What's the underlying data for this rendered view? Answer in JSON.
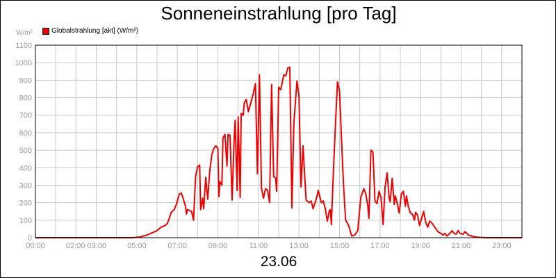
{
  "chart_data": {
    "type": "line",
    "title": "Sonneneinstrahlung [pro Tag]",
    "unit_label": "W/m²",
    "xlabel": "23.06",
    "ylim": [
      0,
      1100
    ],
    "y_ticks": [
      0,
      100,
      200,
      300,
      400,
      500,
      600,
      700,
      800,
      900,
      1000,
      1100
    ],
    "x_range_hours": [
      0,
      24
    ],
    "x_ticks": [
      {
        "h": 0,
        "label": "00:00"
      },
      {
        "h": 2.5,
        "label": "02:00 03:00"
      },
      {
        "h": 5,
        "label": "05:00"
      },
      {
        "h": 7,
        "label": "07:00"
      },
      {
        "h": 9,
        "label": "09:00"
      },
      {
        "h": 11,
        "label": "11:00"
      },
      {
        "h": 13,
        "label": "13:00"
      },
      {
        "h": 15,
        "label": "15:00"
      },
      {
        "h": 17,
        "label": "17:00"
      },
      {
        "h": 19,
        "label": "19:00"
      },
      {
        "h": 21,
        "label": "21:00"
      },
      {
        "h": 23,
        "label": "23:00"
      }
    ],
    "grid": true,
    "legend_position": "top-left",
    "series": [
      {
        "name": "Globalstrahlung [akt] (W/m²)",
        "color": "#ee0000",
        "points": [
          [
            0,
            0
          ],
          [
            4.8,
            0
          ],
          [
            5.2,
            5
          ],
          [
            5.5,
            15
          ],
          [
            5.8,
            30
          ],
          [
            6.0,
            40
          ],
          [
            6.2,
            60
          ],
          [
            6.4,
            70
          ],
          [
            6.5,
            80
          ],
          [
            6.6,
            110
          ],
          [
            6.7,
            145
          ],
          [
            6.85,
            160
          ],
          [
            6.95,
            190
          ],
          [
            7.1,
            250
          ],
          [
            7.2,
            255
          ],
          [
            7.3,
            220
          ],
          [
            7.4,
            180
          ],
          [
            7.45,
            135
          ],
          [
            7.5,
            160
          ],
          [
            7.7,
            150
          ],
          [
            7.8,
            100
          ],
          [
            7.9,
            350
          ],
          [
            8.0,
            405
          ],
          [
            8.1,
            415
          ],
          [
            8.15,
            160
          ],
          [
            8.25,
            225
          ],
          [
            8.3,
            165
          ],
          [
            8.4,
            345
          ],
          [
            8.5,
            220
          ],
          [
            8.6,
            380
          ],
          [
            8.7,
            475
          ],
          [
            8.8,
            510
          ],
          [
            8.9,
            525
          ],
          [
            9.0,
            510
          ],
          [
            9.05,
            235
          ],
          [
            9.1,
            320
          ],
          [
            9.2,
            300
          ],
          [
            9.25,
            570
          ],
          [
            9.35,
            590
          ],
          [
            9.45,
            410
          ],
          [
            9.5,
            590
          ],
          [
            9.6,
            585
          ],
          [
            9.7,
            215
          ],
          [
            9.8,
            555
          ],
          [
            9.85,
            670
          ],
          [
            9.95,
            270
          ],
          [
            10.0,
            690
          ],
          [
            10.1,
            230
          ],
          [
            10.15,
            710
          ],
          [
            10.25,
            700
          ],
          [
            10.3,
            770
          ],
          [
            10.4,
            790
          ],
          [
            10.5,
            720
          ],
          [
            10.6,
            760
          ],
          [
            10.75,
            825
          ],
          [
            10.85,
            880
          ],
          [
            10.95,
            365
          ],
          [
            11.05,
            930
          ],
          [
            11.15,
            285
          ],
          [
            11.25,
            225
          ],
          [
            11.35,
            280
          ],
          [
            11.45,
            270
          ],
          [
            11.55,
            200
          ],
          [
            11.65,
            875
          ],
          [
            11.75,
            350
          ],
          [
            11.85,
            340
          ],
          [
            11.9,
            265
          ],
          [
            12.0,
            860
          ],
          [
            12.1,
            845
          ],
          [
            12.25,
            930
          ],
          [
            12.35,
            925
          ],
          [
            12.45,
            970
          ],
          [
            12.55,
            975
          ],
          [
            12.65,
            170
          ],
          [
            12.75,
            660
          ],
          [
            12.9,
            895
          ],
          [
            13.0,
            810
          ],
          [
            13.1,
            290
          ],
          [
            13.2,
            525
          ],
          [
            13.35,
            215
          ],
          [
            13.5,
            200
          ],
          [
            13.6,
            210
          ],
          [
            13.7,
            165
          ],
          [
            13.85,
            220
          ],
          [
            13.95,
            270
          ],
          [
            14.1,
            200
          ],
          [
            14.2,
            210
          ],
          [
            14.3,
            165
          ],
          [
            14.4,
            95
          ],
          [
            14.5,
            155
          ],
          [
            14.55,
            160
          ],
          [
            14.6,
            75
          ],
          [
            14.7,
            380
          ],
          [
            14.8,
            650
          ],
          [
            14.9,
            890
          ],
          [
            15.0,
            840
          ],
          [
            15.1,
            560
          ],
          [
            15.2,
            300
          ],
          [
            15.3,
            100
          ],
          [
            15.45,
            70
          ],
          [
            15.6,
            10
          ],
          [
            15.75,
            15
          ],
          [
            15.9,
            40
          ],
          [
            16.05,
            230
          ],
          [
            16.2,
            280
          ],
          [
            16.3,
            250
          ],
          [
            16.4,
            180
          ],
          [
            16.45,
            110
          ],
          [
            16.55,
            500
          ],
          [
            16.65,
            490
          ],
          [
            16.75,
            210
          ],
          [
            16.85,
            195
          ],
          [
            16.95,
            265
          ],
          [
            17.05,
            230
          ],
          [
            17.15,
            75
          ],
          [
            17.25,
            290
          ],
          [
            17.35,
            370
          ],
          [
            17.45,
            225
          ],
          [
            17.5,
            205
          ],
          [
            17.6,
            340
          ],
          [
            17.7,
            190
          ],
          [
            17.75,
            240
          ],
          [
            17.85,
            195
          ],
          [
            17.95,
            140
          ],
          [
            18.05,
            250
          ],
          [
            18.15,
            265
          ],
          [
            18.25,
            180
          ],
          [
            18.3,
            240
          ],
          [
            18.4,
            175
          ],
          [
            18.5,
            140
          ],
          [
            18.6,
            135
          ],
          [
            18.7,
            100
          ],
          [
            18.75,
            145
          ],
          [
            18.85,
            130
          ],
          [
            18.95,
            70
          ],
          [
            19.05,
            110
          ],
          [
            19.15,
            150
          ],
          [
            19.25,
            90
          ],
          [
            19.35,
            60
          ],
          [
            19.45,
            95
          ],
          [
            19.55,
            85
          ],
          [
            19.7,
            60
          ],
          [
            19.85,
            35
          ],
          [
            20.0,
            25
          ],
          [
            20.1,
            15
          ],
          [
            20.2,
            25
          ],
          [
            20.3,
            10
          ],
          [
            20.45,
            25
          ],
          [
            20.55,
            40
          ],
          [
            20.65,
            25
          ],
          [
            20.75,
            20
          ],
          [
            20.85,
            40
          ],
          [
            20.95,
            25
          ],
          [
            21.1,
            20
          ],
          [
            21.2,
            35
          ],
          [
            21.35,
            15
          ],
          [
            21.5,
            10
          ],
          [
            21.65,
            5
          ],
          [
            21.9,
            2
          ],
          [
            22.2,
            0
          ],
          [
            24,
            0
          ]
        ]
      }
    ]
  }
}
